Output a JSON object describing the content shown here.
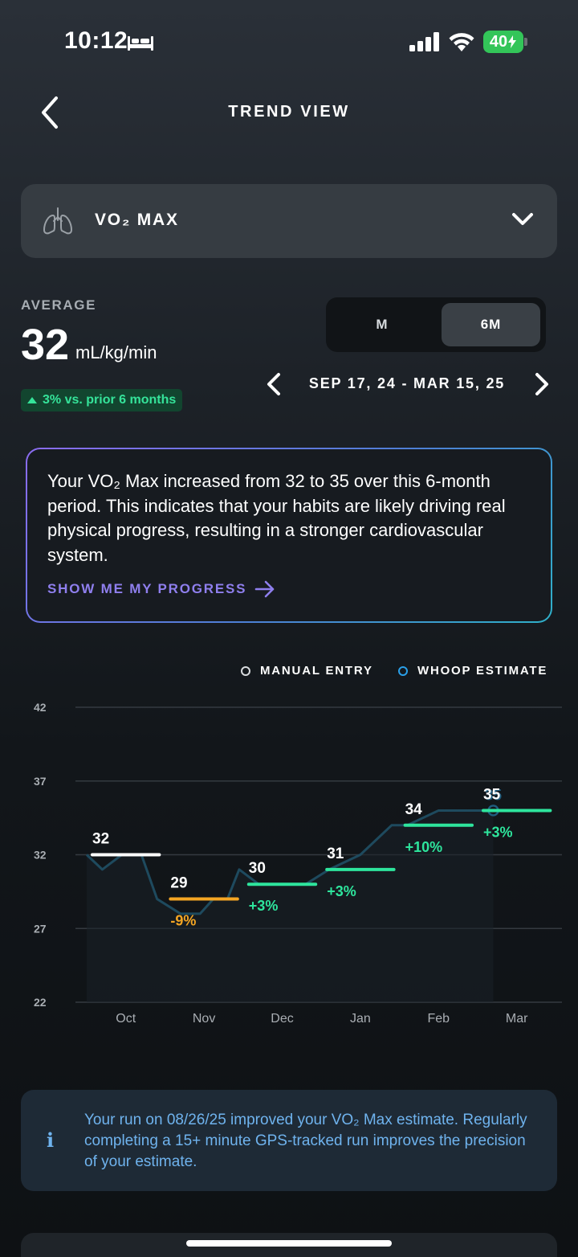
{
  "status_bar": {
    "time": "10:12",
    "battery": "40"
  },
  "header": {
    "title": "TREND VIEW"
  },
  "selector": {
    "label": "VO₂ MAX",
    "icon": "lungs-icon"
  },
  "average": {
    "label": "AVERAGE",
    "value": "32",
    "unit": "mL/kg/min",
    "change": "3% vs. prior 6 months"
  },
  "range_tabs": [
    "M",
    "6M"
  ],
  "selected_range": "6M",
  "date_range": "SEP 17, 24 - MAR 15, 25",
  "insight": {
    "text": "Your VO₂ Max increased from 32 to 35 over this 6-month period. This indicates that your habits are likely driving real physical progress, resulting in a stronger cardiovascular system.",
    "link": "SHOW ME MY PROGRESS"
  },
  "legend": {
    "manual": "MANUAL ENTRY",
    "whoop": "WHOOP ESTIMATE"
  },
  "colors": {
    "green": "#2ee59d",
    "orange": "#f5a623",
    "white": "#ffffff",
    "estimate_line": "#1e4a5e",
    "accent_purple": "#8f7fee",
    "info_blue": "#6fb3ee"
  },
  "chart_data": {
    "type": "line",
    "ylim": [
      22,
      42
    ],
    "yticks": [
      "42",
      "37",
      "32",
      "27",
      "22"
    ],
    "categories": [
      "Oct",
      "Nov",
      "Dec",
      "Jan",
      "Feb",
      "Mar"
    ],
    "monthly_averages": [
      {
        "label": "32",
        "value": 32,
        "change": "",
        "color": "white"
      },
      {
        "label": "29",
        "value": 29,
        "change": "-9%",
        "color": "orange"
      },
      {
        "label": "30",
        "value": 30,
        "change": "+3%",
        "color": "green"
      },
      {
        "label": "31",
        "value": 31,
        "change": "+3%",
        "color": "green"
      },
      {
        "label": "34",
        "value": 34,
        "change": "+10%",
        "color": "green"
      },
      {
        "label": "35",
        "value": 35,
        "change": "+3%",
        "color": "green"
      }
    ],
    "estimate_series": {
      "name": "WHOOP ESTIMATE",
      "x": [
        0.0,
        0.2,
        0.45,
        0.7,
        0.9,
        1.2,
        1.45,
        1.62,
        1.8,
        1.95,
        2.2,
        2.45,
        2.8,
        3.1,
        3.5,
        3.9,
        4.1,
        4.5,
        4.9,
        5.2
      ],
      "y": [
        32,
        31,
        32,
        32,
        29,
        28,
        28,
        29,
        29,
        31,
        30,
        30,
        30,
        31,
        32,
        34,
        34,
        35,
        35,
        35
      ]
    },
    "latest_estimate": "35"
  },
  "info_card": {
    "text": "Your run on 08/26/25 improved your VO₂ Max estimate. Regularly completing a 15+ minute GPS-tracked run improves the precision of your estimate."
  }
}
